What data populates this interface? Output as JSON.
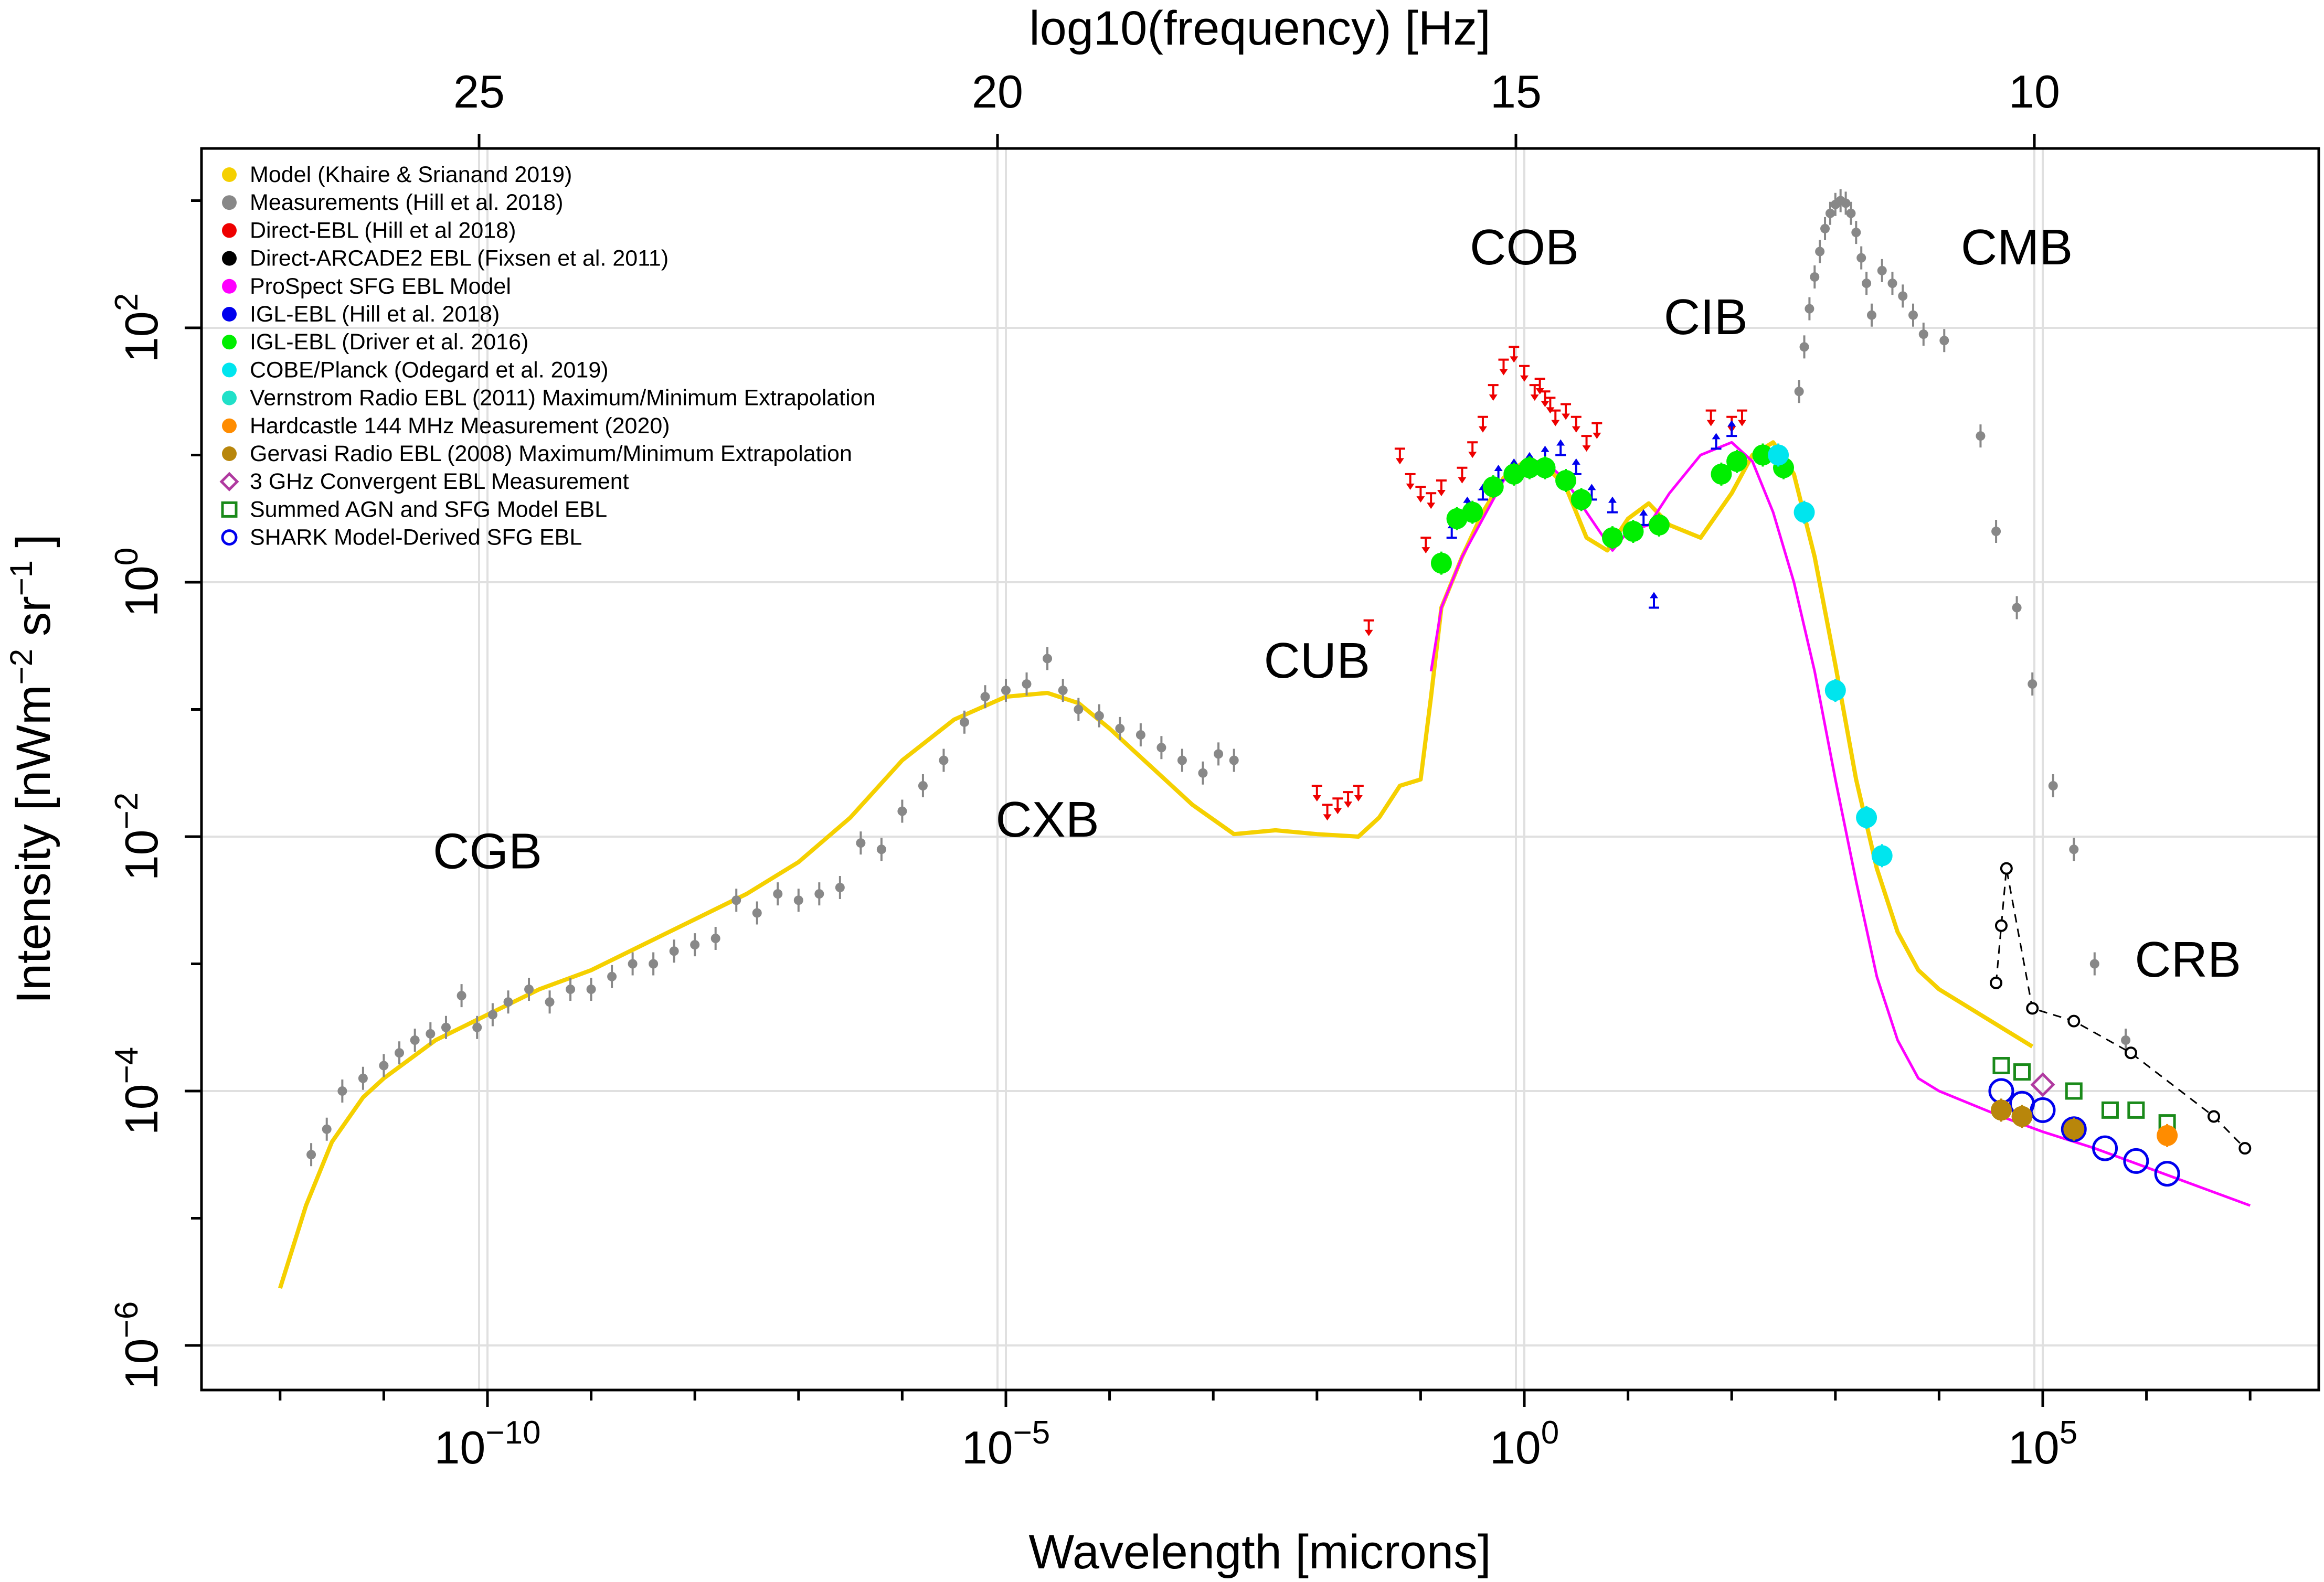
{
  "chart_data": {
    "type": "scatter",
    "title": "",
    "xlabel": "Wavelength [microns]",
    "ylabel": "Intensity [nWm-2 sr-1]",
    "ylabel_parts": {
      "main": "Intensity [nWm",
      "exp1": "−2",
      "mid": "sr",
      "exp2": "−1",
      "end": "]"
    },
    "top_xlabel": "log10(frequency) [Hz]",
    "x_scale": "log10",
    "y_scale": "log10",
    "xlim_log": [
      -12.7,
      7.7
    ],
    "ylim_log": [
      -6.7,
      3.4
    ],
    "x_ticks": [
      {
        "log": -10,
        "base": "10",
        "exp": "−10"
      },
      {
        "log": -5,
        "base": "10",
        "exp": "−5"
      },
      {
        "log": 0,
        "base": "10",
        "exp": "0"
      },
      {
        "log": 5,
        "base": "10",
        "exp": "5"
      }
    ],
    "x_minor_ticks": [
      -12,
      -11,
      -9,
      -8,
      -7,
      -6,
      -4,
      -3,
      -2,
      -1,
      1,
      2,
      3,
      4,
      6,
      7
    ],
    "top_ticks": [
      {
        "freq": 25,
        "label": "25"
      },
      {
        "freq": 20,
        "label": "20"
      },
      {
        "freq": 15,
        "label": "15"
      },
      {
        "freq": 10,
        "label": "10"
      }
    ],
    "y_ticks": [
      {
        "log": 2,
        "base": "10",
        "exp": "2"
      },
      {
        "log": 0,
        "base": "10",
        "exp": "0"
      },
      {
        "log": -2,
        "base": "10",
        "exp": "−2"
      },
      {
        "log": -4,
        "base": "10",
        "exp": "−4"
      },
      {
        "log": -6,
        "base": "10",
        "exp": "−6"
      }
    ],
    "y_minor_ticks": [
      3,
      1,
      -1,
      -3,
      -5
    ],
    "grid": true,
    "band_labels": [
      {
        "text": "CGB",
        "x": -10.0,
        "y": -2.25
      },
      {
        "text": "CXB",
        "x": -4.6,
        "y": -2.0
      },
      {
        "text": "CUB",
        "x": -2.0,
        "y": -0.75
      },
      {
        "text": "COB",
        "x": 0.0,
        "y": 2.5
      },
      {
        "text": "CIB",
        "x": 1.75,
        "y": 1.95
      },
      {
        "text": "CMB",
        "x": 4.75,
        "y": 2.5
      },
      {
        "text": "CRB",
        "x": 6.4,
        "y": -3.1
      }
    ],
    "legend": [
      {
        "label": "Model (Khaire & Srianand 2019)",
        "marker": "dot",
        "color": "#f5d000"
      },
      {
        "label": "Measurements (Hill et al. 2018)",
        "marker": "dot",
        "color": "#888888"
      },
      {
        "label": "Direct-EBL (Hill et al 2018)",
        "marker": "dot",
        "color": "#ee0000"
      },
      {
        "label": "Direct-ARCADE2 EBL (Fixsen et al. 2011)",
        "marker": "dot",
        "color": "#000000"
      },
      {
        "label": "ProSpect SFG EBL Model",
        "marker": "dot",
        "color": "#ff00ff"
      },
      {
        "label": "IGL-EBL (Hill et al. 2018)",
        "marker": "dot",
        "color": "#0000ee"
      },
      {
        "label": "IGL-EBL (Driver et al. 2016)",
        "marker": "dot",
        "color": "#00ee00"
      },
      {
        "label": "COBE/Planck (Odegard et al. 2019)",
        "marker": "dot",
        "color": "#00e5ee"
      },
      {
        "label": "Vernstrom Radio EBL (2011) Maximum/Minimum Extrapolation",
        "marker": "dot",
        "color": "#20e0c8"
      },
      {
        "label": "Hardcastle 144 MHz Measurement (2020)",
        "marker": "dot",
        "color": "#ff8c00"
      },
      {
        "label": "Gervasi Radio EBL (2008) Maximum/Minimum Extrapolation",
        "marker": "dot",
        "color": "#b8860b"
      },
      {
        "label": "3 GHz Convergent EBL Measurement",
        "marker": "diamond",
        "color": "#b03aa0"
      },
      {
        "label": "Summed AGN and SFG Model EBL",
        "marker": "square",
        "color": "#1a8a1a"
      },
      {
        "label": "SHARK Model-Derived SFG EBL",
        "marker": "circle",
        "color": "#0000ee"
      }
    ],
    "series": [
      {
        "name": "Model (Khaire & Srianand 2019)",
        "kind": "line",
        "color": "#f5d000",
        "width": 8,
        "x": [
          -12.0,
          -11.75,
          -11.5,
          -11.2,
          -11.0,
          -10.5,
          -10.0,
          -9.5,
          -9.0,
          -8.5,
          -8.0,
          -7.5,
          -7.0,
          -6.5,
          -6.0,
          -5.5,
          -5.0,
          -4.6,
          -4.3,
          -4.0,
          -3.6,
          -3.2,
          -2.8,
          -2.4,
          -2.0,
          -1.6,
          -1.4,
          -1.2,
          -1.0,
          -0.9,
          -0.8,
          -0.6,
          -0.4,
          -0.2,
          0.0,
          0.2,
          0.4,
          0.6,
          0.8,
          1.0,
          1.2,
          1.4,
          1.7,
          2.0,
          2.2,
          2.4,
          2.6,
          2.8,
          3.0,
          3.2,
          3.4,
          3.6,
          3.8,
          4.0,
          4.3,
          4.6,
          4.9
        ],
        "y": [
          -5.55,
          -4.9,
          -4.4,
          -4.05,
          -3.9,
          -3.6,
          -3.4,
          -3.2,
          -3.05,
          -2.85,
          -2.65,
          -2.45,
          -2.2,
          -1.85,
          -1.4,
          -1.08,
          -0.9,
          -0.87,
          -0.95,
          -1.15,
          -1.45,
          -1.75,
          -1.98,
          -1.95,
          -1.98,
          -2.0,
          -1.85,
          -1.6,
          -1.55,
          -0.9,
          -0.2,
          0.2,
          0.55,
          0.82,
          0.95,
          0.92,
          0.75,
          0.35,
          0.25,
          0.5,
          0.62,
          0.45,
          0.35,
          0.7,
          1.0,
          1.1,
          0.85,
          0.2,
          -0.65,
          -1.55,
          -2.25,
          -2.75,
          -3.05,
          -3.2,
          -3.35,
          -3.5,
          -3.65
        ]
      },
      {
        "name": "ProSpect SFG EBL Model",
        "kind": "line",
        "color": "#ff00ff",
        "width": 5,
        "x": [
          -0.9,
          -0.8,
          -0.6,
          -0.4,
          -0.2,
          0.0,
          0.2,
          0.4,
          0.6,
          0.85,
          1.0,
          1.2,
          1.4,
          1.7,
          2.0,
          2.2,
          2.4,
          2.6,
          2.8,
          3.0,
          3.2,
          3.4,
          3.6,
          3.8,
          4.0,
          4.3,
          4.6,
          5.0,
          5.5,
          6.0,
          6.5,
          7.0
        ],
        "y": [
          -0.7,
          -0.2,
          0.2,
          0.5,
          0.8,
          0.95,
          0.95,
          0.8,
          0.55,
          0.25,
          0.4,
          0.45,
          0.7,
          1.0,
          1.1,
          0.95,
          0.55,
          0.0,
          -0.7,
          -1.55,
          -2.35,
          -3.1,
          -3.6,
          -3.9,
          -4.0,
          -4.1,
          -4.2,
          -4.32,
          -4.45,
          -4.6,
          -4.75,
          -4.9
        ]
      },
      {
        "name": "Measurements (Hill et al. 2018)",
        "kind": "points",
        "color": "#888888",
        "x": [
          -11.7,
          -11.55,
          -11.4,
          -11.2,
          -11.0,
          -10.85,
          -10.7,
          -10.55,
          -10.4,
          -10.25,
          -10.1,
          -9.95,
          -9.8,
          -9.6,
          -9.4,
          -9.2,
          -9.0,
          -8.8,
          -8.6,
          -8.4,
          -8.2,
          -8.0,
          -7.8,
          -7.6,
          -7.4,
          -7.2,
          -7.0,
          -6.8,
          -6.6,
          -6.4,
          -6.2,
          -6.0,
          -5.8,
          -5.6,
          -5.4,
          -5.2,
          -5.0,
          -4.8,
          -4.6,
          -4.45,
          -4.3,
          -4.1,
          -3.9,
          -3.7,
          -3.5,
          -3.3,
          -3.1,
          -2.95,
          -2.8
        ],
        "y": [
          -4.5,
          -4.3,
          -4.0,
          -3.9,
          -3.8,
          -3.7,
          -3.6,
          -3.55,
          -3.5,
          -3.25,
          -3.5,
          -3.4,
          -3.3,
          -3.2,
          -3.3,
          -3.2,
          -3.2,
          -3.1,
          -3.0,
          -3.0,
          -2.9,
          -2.85,
          -2.8,
          -2.5,
          -2.6,
          -2.45,
          -2.5,
          -2.45,
          -2.4,
          -2.05,
          -2.1,
          -1.8,
          -1.6,
          -1.4,
          -1.1,
          -0.9,
          -0.85,
          -0.8,
          -0.6,
          -0.85,
          -1.0,
          -1.05,
          -1.15,
          -1.2,
          -1.3,
          -1.4,
          -1.5,
          -1.35,
          -1.4
        ]
      },
      {
        "name": "CMB (Hill et al. 2018)",
        "kind": "points",
        "color": "#888888",
        "x": [
          2.65,
          2.7,
          2.75,
          2.8,
          2.85,
          2.9,
          2.95,
          3.0,
          3.05,
          3.1,
          3.15,
          3.2,
          3.25,
          3.3,
          3.35,
          3.45,
          3.55,
          3.65,
          3.75,
          3.85,
          4.05,
          4.4,
          4.55,
          4.75,
          4.9,
          5.1,
          5.3,
          5.5,
          5.8
        ],
        "y": [
          1.5,
          1.85,
          2.15,
          2.4,
          2.6,
          2.78,
          2.9,
          2.97,
          3.0,
          2.98,
          2.9,
          2.75,
          2.55,
          2.35,
          2.1,
          2.45,
          2.35,
          2.25,
          2.1,
          1.95,
          1.9,
          1.15,
          0.4,
          -0.2,
          -0.8,
          -1.6,
          -2.1,
          -3.0,
          -3.6
        ]
      },
      {
        "name": "Direct-EBL (Hill et al 2018)",
        "kind": "upper-limits",
        "color": "#ee0000",
        "x": [
          -2.0,
          -1.9,
          -1.8,
          -1.7,
          -1.6,
          -1.5,
          -1.2,
          -1.1,
          -1.0,
          -0.95,
          -0.9,
          -0.8,
          -0.6,
          -0.5,
          -0.4,
          -0.3,
          -0.2,
          -0.1,
          0.0,
          0.1,
          0.15,
          0.2,
          0.25,
          0.3,
          0.4,
          0.5,
          0.6,
          0.7,
          1.8,
          2.0,
          2.1
        ],
        "y": [
          -1.6,
          -1.75,
          -1.7,
          -1.65,
          -1.6,
          -0.3,
          1.05,
          0.85,
          0.75,
          0.35,
          0.7,
          0.8,
          0.9,
          1.1,
          1.3,
          1.55,
          1.75,
          1.85,
          1.7,
          1.55,
          1.6,
          1.5,
          1.45,
          1.35,
          1.4,
          1.3,
          1.15,
          1.25,
          1.35,
          1.3,
          1.35
        ]
      },
      {
        "name": "IGL-EBL (Hill et al. 2018)",
        "kind": "lower-limits",
        "color": "#0000ee",
        "x": [
          -0.7,
          -0.55,
          -0.4,
          -0.25,
          -0.1,
          0.05,
          0.2,
          0.35,
          0.5,
          0.65,
          0.85,
          1.15,
          1.25,
          1.85,
          2.0
        ],
        "y": [
          0.35,
          0.55,
          0.65,
          0.8,
          0.85,
          0.9,
          0.95,
          1.0,
          0.85,
          0.65,
          0.55,
          0.45,
          -0.2,
          1.05,
          1.15
        ]
      },
      {
        "name": "IGL-EBL (Driver et al. 2016)",
        "kind": "points",
        "color": "#00ee00",
        "x": [
          -0.8,
          -0.65,
          -0.5,
          -0.3,
          -0.1,
          0.05,
          0.2,
          0.4,
          0.55,
          0.85,
          1.05,
          1.3,
          1.9,
          2.05,
          2.3,
          2.5
        ],
        "y": [
          0.15,
          0.5,
          0.55,
          0.75,
          0.85,
          0.9,
          0.9,
          0.8,
          0.65,
          0.35,
          0.4,
          0.45,
          0.85,
          0.95,
          1.0,
          0.9
        ]
      },
      {
        "name": "COBE/Planck (Odegard et al. 2019)",
        "kind": "points",
        "color": "#00e5ee",
        "x": [
          2.45,
          2.7,
          3.0,
          3.3,
          3.45
        ],
        "y": [
          1.0,
          0.55,
          -0.85,
          -1.85,
          -2.15
        ]
      },
      {
        "name": "Direct-ARCADE2 EBL (Fixsen et al. 2011)",
        "kind": "dashed-open",
        "color": "#000000",
        "x": [
          4.55,
          4.6,
          4.65,
          4.9,
          5.3,
          5.85,
          6.65,
          6.95
        ],
        "y": [
          -3.15,
          -2.7,
          -2.25,
          -3.35,
          -3.45,
          -3.7,
          -4.2,
          -4.45
        ]
      },
      {
        "name": "Summed AGN and SFG Model EBL",
        "kind": "open-square",
        "color": "#1a8a1a",
        "x": [
          4.6,
          4.8,
          5.3,
          5.65,
          5.9,
          6.2
        ],
        "y": [
          -3.8,
          -3.85,
          -4.0,
          -4.15,
          -4.15,
          -4.25
        ]
      },
      {
        "name": "SHARK Model-Derived SFG EBL",
        "kind": "open-circle",
        "color": "#0000ee",
        "x": [
          4.6,
          4.8,
          5.0,
          5.3,
          5.6,
          5.9,
          6.2
        ],
        "y": [
          -4.0,
          -4.1,
          -4.15,
          -4.3,
          -4.45,
          -4.55,
          -4.65
        ]
      },
      {
        "name": "3 GHz Convergent EBL Measurement",
        "kind": "diamond",
        "color": "#b03aa0",
        "x": [
          5.0
        ],
        "y": [
          -3.95
        ]
      },
      {
        "name": "Gervasi Radio EBL (2008) Maximum/Minimum Extrapolation",
        "kind": "points",
        "color": "#b8860b",
        "x": [
          4.6,
          4.8,
          5.3
        ],
        "y": [
          -4.15,
          -4.2,
          -4.3
        ]
      },
      {
        "name": "Hardcastle 144 MHz Measurement (2020)",
        "kind": "points",
        "color": "#ff8c00",
        "x": [
          6.2
        ],
        "y": [
          -4.35
        ]
      }
    ]
  }
}
